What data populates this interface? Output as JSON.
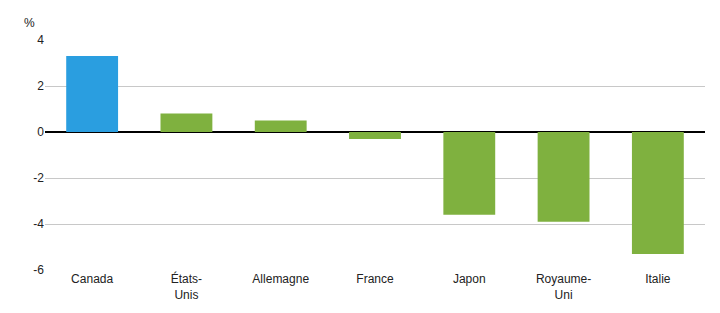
{
  "chart_data": {
    "type": "bar",
    "ylabel": "%",
    "categories": [
      "Canada",
      "États-Unis",
      "Allemagne",
      "France",
      "Japon",
      "Royaume-Uni",
      "Italie"
    ],
    "values": [
      3.3,
      0.8,
      0.5,
      -0.3,
      -3.6,
      -3.9,
      -5.3
    ],
    "colors": [
      "#2a9ee0",
      "#7fb13f",
      "#7fb13f",
      "#7fb13f",
      "#7fb13f",
      "#7fb13f",
      "#7fb13f"
    ],
    "ylim": [
      -6,
      4
    ],
    "yticks": [
      -6,
      -4,
      -2,
      0,
      2,
      4
    ],
    "grid": true
  }
}
